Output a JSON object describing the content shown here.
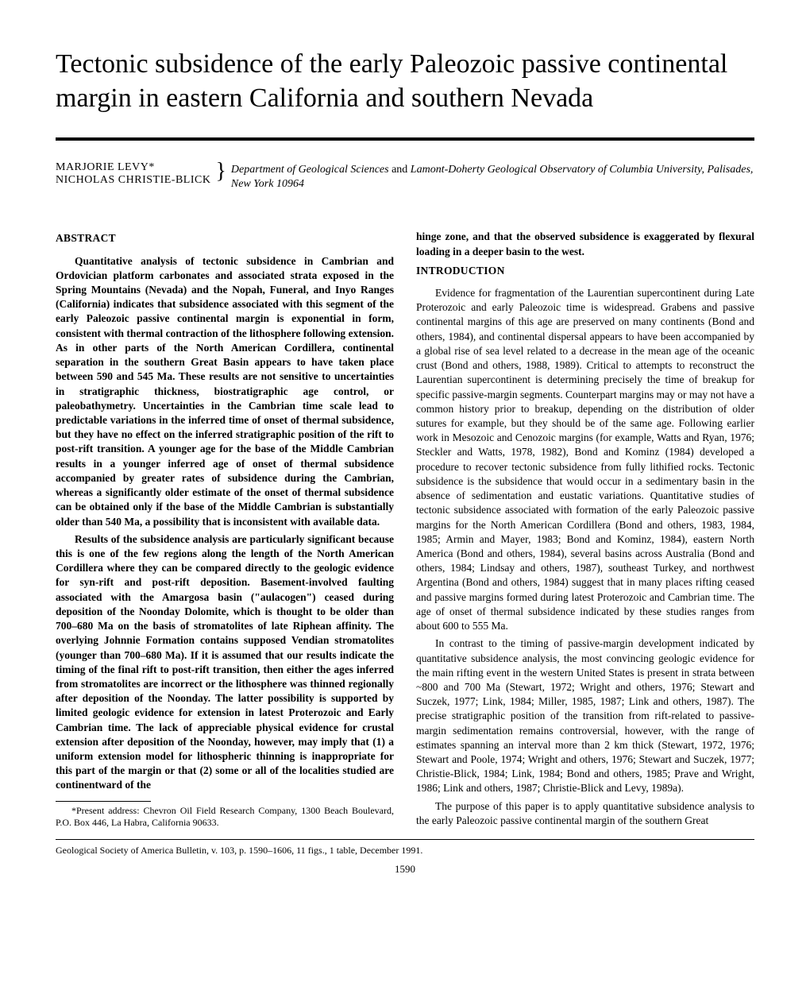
{
  "title": "Tectonic subsidence of the early Paleozoic passive continental margin in eastern California and southern Nevada",
  "authors": {
    "names": [
      "MARJORIE LEVY*",
      "NICHOLAS CHRISTIE-BLICK"
    ],
    "affiliation_part1": "Department of Geological Sciences",
    "affiliation_and": " and ",
    "affiliation_part2": "Lamont-Doherty Geological Observatory of Columbia University, Palisades, New York 10964"
  },
  "left_col": {
    "abstract_head": "ABSTRACT",
    "abstract_p1": "Quantitative analysis of tectonic subsidence in Cambrian and Ordovician platform carbonates and associated strata exposed in the Spring Mountains (Nevada) and the Nopah, Funeral, and Inyo Ranges (California) indicates that subsidence associated with this segment of the early Paleozoic passive continental margin is exponential in form, consistent with thermal contraction of the lithosphere following extension. As in other parts of the North American Cordillera, continental separation in the southern Great Basin appears to have taken place between 590 and 545 Ma. These results are not sensitive to uncertainties in stratigraphic thickness, biostratigraphic age control, or paleobathymetry. Uncertainties in the Cambrian time scale lead to predictable variations in the inferred time of onset of thermal subsidence, but they have no effect on the inferred stratigraphic position of the rift to post-rift transition. A younger age for the base of the Middle Cambrian results in a younger inferred age of onset of thermal subsidence accompanied by greater rates of subsidence during the Cambrian, whereas a significantly older estimate of the onset of thermal subsidence can be obtained only if the base of the Middle Cambrian is substantially older than 540 Ma, a possibility that is inconsistent with available data.",
    "abstract_p2": "Results of the subsidence analysis are particularly significant because this is one of the few regions along the length of the North American Cordillera where they can be compared directly to the geologic evidence for syn-rift and post-rift deposition. Basement-involved faulting associated with the Amargosa basin (\"aulacogen\") ceased during deposition of the Noonday Dolomite, which is thought to be older than 700–680 Ma on the basis of stromatolites of late Riphean affinity. The overlying Johnnie Formation contains supposed Vendian stromatolites (younger than 700–680 Ma). If it is assumed that our results indicate the timing of the final rift to post-rift transition, then either the ages inferred from stromatolites are incorrect or the lithosphere was thinned regionally after deposition of the Noonday. The latter possibility is supported by limited geologic evidence for extension in latest Proterozoic and Early Cambrian time. The lack of appreciable physical evidence for crustal extension after deposition of the Noonday, however, may imply that (1) a uniform extension model for lithospheric thinning is inappropriate for this part of the margin or that (2) some or all of the localities studied are continentward of the",
    "footnote": "*Present address: Chevron Oil Field Research Company, 1300 Beach Boulevard, P.O. Box 446, La Habra, California 90633."
  },
  "right_col": {
    "cont_p": "hinge zone, and that the observed subsidence is exaggerated by flexural loading in a deeper basin to the west.",
    "intro_head": "INTRODUCTION",
    "intro_p1": "Evidence for fragmentation of the Laurentian supercontinent during Late Proterozoic and early Paleozoic time is widespread. Grabens and passive continental margins of this age are preserved on many continents (Bond and others, 1984), and continental dispersal appears to have been accompanied by a global rise of sea level related to a decrease in the mean age of the oceanic crust (Bond and others, 1988, 1989). Critical to attempts to reconstruct the Laurentian supercontinent is determining precisely the time of breakup for specific passive-margin segments. Counterpart margins may or may not have a common history prior to breakup, depending on the distribution of older sutures for example, but they should be of the same age. Following earlier work in Mesozoic and Cenozoic margins (for example, Watts and Ryan, 1976; Steckler and Watts, 1978, 1982), Bond and Kominz (1984) developed a procedure to recover tectonic subsidence from fully lithified rocks. Tectonic subsidence is the subsidence that would occur in a sedimentary basin in the absence of sedimentation and eustatic variations. Quantitative studies of tectonic subsidence associated with formation of the early Paleozoic passive margins for the North American Cordillera (Bond and others, 1983, 1984, 1985; Armin and Mayer, 1983; Bond and Kominz, 1984), eastern North America (Bond and others, 1984), several basins across Australia (Bond and others, 1984; Lindsay and others, 1987), southeast Turkey, and northwest Argentina (Bond and others, 1984) suggest that in many places rifting ceased and passive margins formed during latest Proterozoic and Cambrian time. The age of onset of thermal subsidence indicated by these studies ranges from about 600 to 555 Ma.",
    "intro_p2": "In contrast to the timing of passive-margin development indicated by quantitative subsidence analysis, the most convincing geologic evidence for the main rifting event in the western United States is present in strata between ~800 and 700 Ma (Stewart, 1972; Wright and others, 1976; Stewart and Suczek, 1977; Link, 1984; Miller, 1985, 1987; Link and others, 1987). The precise stratigraphic position of the transition from rift-related to passive-margin sedimentation remains controversial, however, with the range of estimates spanning an interval more than 2 km thick (Stewart, 1972, 1976; Stewart and Poole, 1974; Wright and others, 1976; Stewart and Suczek, 1977; Christie-Blick, 1984; Link, 1984; Bond and others, 1985; Prave and Wright, 1986; Link and others, 1987; Christie-Blick and Levy, 1989a).",
    "intro_p3": "The purpose of this paper is to apply quantitative subsidence analysis to the early Paleozoic passive continental margin of the southern Great"
  },
  "citation": "Geological Society of America Bulletin, v. 103, p. 1590–1606, 11 figs., 1 table, December 1991.",
  "page_number": "1590"
}
